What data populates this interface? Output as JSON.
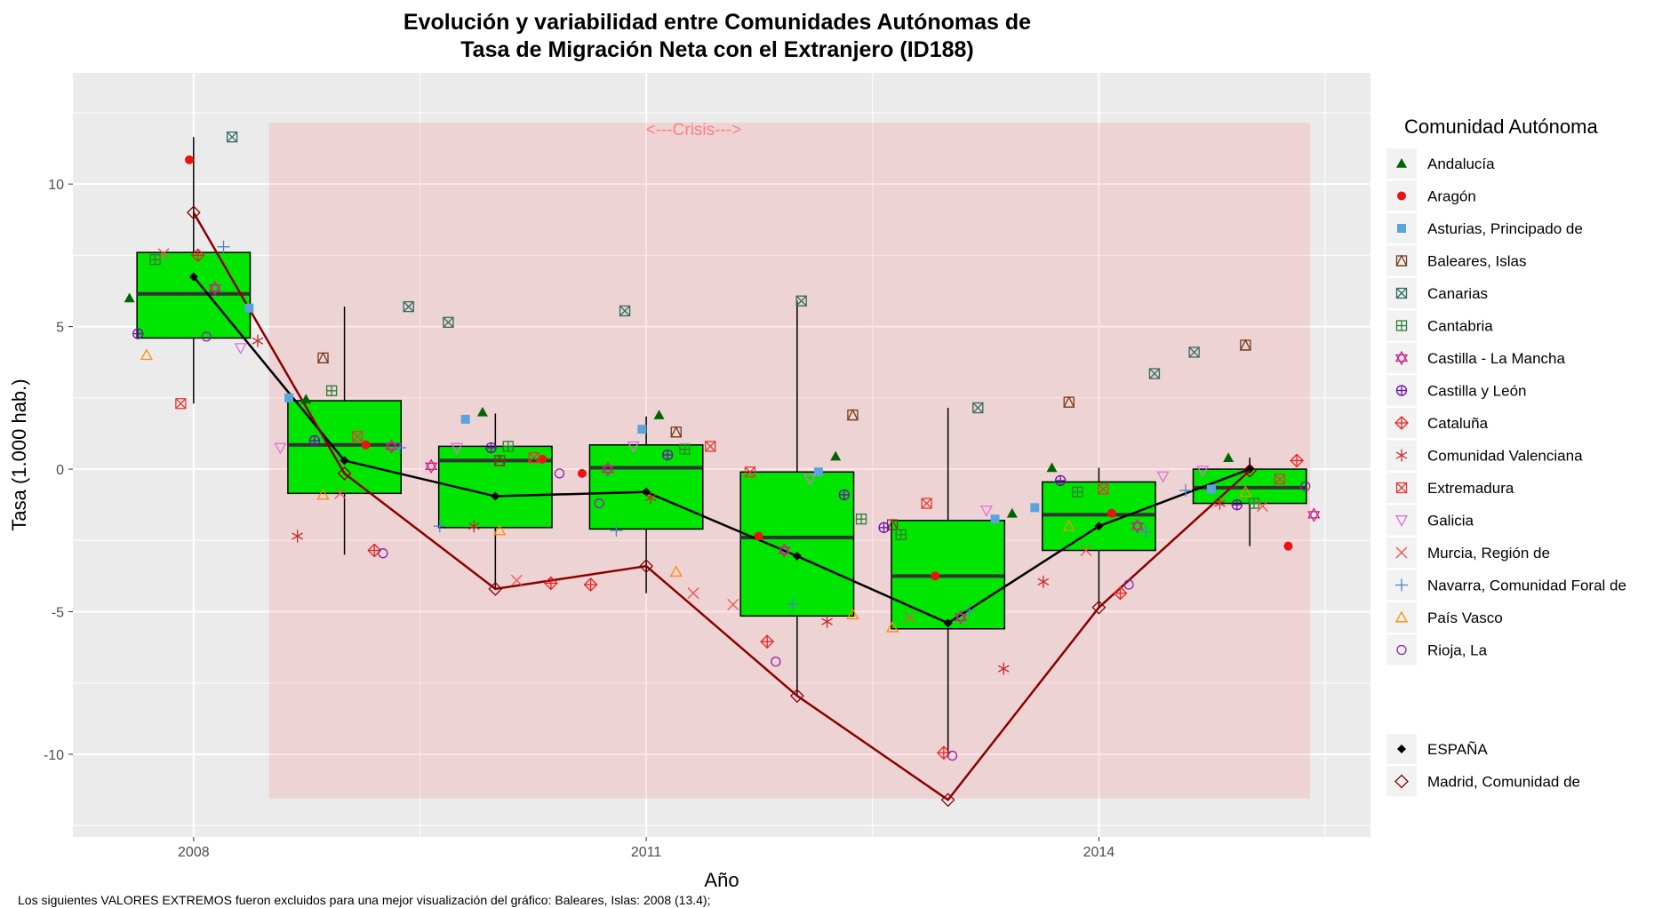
{
  "chart_data": {
    "type": "boxplot",
    "title_line1": "Evolución y variabilidad entre Comunidades Autónomas de",
    "title_line2": "Tasa de Migración Neta con el Extranjero (ID188)",
    "xlabel": "Año",
    "ylabel": "Tasa (1.000 hab.)",
    "ylim": [
      -12.9,
      13.9
    ],
    "xlim": [
      2007.2,
      2015.8
    ],
    "x_ticks": [
      2008,
      2011,
      2014
    ],
    "y_ticks": [
      10,
      5,
      0,
      -5,
      -10
    ],
    "y_tick_labels": [
      "10",
      "5",
      "0",
      "-5",
      "-10"
    ],
    "crisis_annotation": "<---Crisis--->",
    "crisis_range": [
      2008.5,
      2015.4
    ],
    "crisis_y": [
      -11.55,
      12.15
    ],
    "legend_title": "Comunidad Autónoma",
    "footnote": "Los siguientes VALORES EXTREMOS fueron excluidos para una mejor visualización del gráfico: Baleares, Islas: 2008 (13.4);",
    "years": [
      2008,
      2009,
      2010,
      2011,
      2012,
      2013,
      2014,
      2015
    ],
    "boxes": [
      {
        "year": 2008,
        "q1": 4.6,
        "median": 6.15,
        "q3": 7.6,
        "whisker_low": 2.3,
        "whisker_high": 11.65
      },
      {
        "year": 2009,
        "q1": -0.85,
        "median": 0.85,
        "q3": 2.4,
        "whisker_low": -3.0,
        "whisker_high": 5.7
      },
      {
        "year": 2010,
        "q1": -2.05,
        "median": 0.3,
        "q3": 0.8,
        "whisker_low": -4.2,
        "whisker_high": 1.95
      },
      {
        "year": 2011,
        "q1": -2.1,
        "median": 0.05,
        "q3": 0.85,
        "whisker_low": -4.35,
        "whisker_high": 1.85
      },
      {
        "year": 2012,
        "q1": -5.15,
        "median": -2.4,
        "q3": -0.1,
        "whisker_low": -7.9,
        "whisker_high": 5.9
      },
      {
        "year": 2013,
        "q1": -5.6,
        "median": -3.75,
        "q3": -1.8,
        "whisker_low": -10.1,
        "whisker_high": 2.15
      },
      {
        "year": 2014,
        "q1": -2.85,
        "median": -1.6,
        "q3": -0.45,
        "whisker_low": -4.9,
        "whisker_high": 0.05
      },
      {
        "year": 2015,
        "q1": -1.2,
        "median": -0.65,
        "q3": 0.0,
        "whisker_low": -2.7,
        "whisker_high": 0.4
      }
    ],
    "lines": [
      {
        "name": "ESPAÑA",
        "color": "#000000",
        "marker": "diamond-filled",
        "values": [
          6.75,
          0.3,
          -0.95,
          -0.8,
          -3.05,
          -5.4,
          -2.0,
          0.0
        ]
      },
      {
        "name": "Madrid, Comunidad de",
        "color": "#8b0000",
        "marker": "diamond-open",
        "values": [
          9.0,
          -0.15,
          -4.2,
          -3.4,
          -7.95,
          -11.6,
          -4.85,
          -0.05
        ]
      }
    ],
    "series": [
      {
        "name": "Andalucía",
        "color": "#006400",
        "shape": "triangle-filled",
        "points": [
          [
            2008,
            6.0
          ],
          [
            2009,
            2.45
          ],
          [
            2010,
            2.0
          ],
          [
            2011,
            1.9
          ],
          [
            2012,
            0.45
          ],
          [
            2013,
            -1.55
          ],
          [
            2014,
            0.05
          ],
          [
            2015,
            0.4
          ]
        ]
      },
      {
        "name": "Aragón",
        "color": "#ee1111",
        "shape": "circle-filled",
        "points": [
          [
            2008,
            10.85
          ],
          [
            2009,
            0.85
          ],
          [
            2010,
            0.35
          ],
          [
            2011,
            -0.15
          ],
          [
            2012,
            -2.35
          ],
          [
            2013,
            -3.75
          ],
          [
            2014,
            -1.55
          ],
          [
            2015,
            -2.7
          ]
        ]
      },
      {
        "name": "Asturias, Principado de",
        "color": "#5ba3dd",
        "shape": "square-filled",
        "points": [
          [
            2008,
            5.65
          ],
          [
            2009,
            2.5
          ],
          [
            2010,
            1.75
          ],
          [
            2011,
            1.4
          ],
          [
            2012,
            -0.1
          ],
          [
            2013,
            -1.75
          ],
          [
            2014,
            -1.35
          ],
          [
            2015,
            -0.7
          ]
        ]
      },
      {
        "name": "Baleares, Islas",
        "color": "#7a3b1a",
        "shape": "square-triangle",
        "points": [
          [
            2009,
            3.9
          ],
          [
            2010,
            0.3
          ],
          [
            2011,
            1.3
          ],
          [
            2012,
            1.9
          ],
          [
            2013,
            -1.95
          ],
          [
            2014,
            2.35
          ],
          [
            2015,
            4.35
          ]
        ]
      },
      {
        "name": "Canarias",
        "color": "#2e6b5e",
        "shape": "square-cross",
        "points": [
          [
            2008,
            11.65
          ],
          [
            2009,
            5.7
          ],
          [
            2010,
            5.15
          ],
          [
            2011,
            5.55
          ],
          [
            2012,
            5.9
          ],
          [
            2013,
            2.15
          ],
          [
            2014,
            3.35
          ],
          [
            2015,
            4.1
          ]
        ]
      },
      {
        "name": "Cantabria",
        "color": "#2e7d32",
        "shape": "square-plus",
        "points": [
          [
            2008,
            7.35
          ],
          [
            2009,
            2.75
          ],
          [
            2010,
            0.8
          ],
          [
            2011,
            0.7
          ],
          [
            2012,
            -1.75
          ],
          [
            2013,
            -2.3
          ],
          [
            2014,
            -0.8
          ],
          [
            2015,
            -1.2
          ]
        ]
      },
      {
        "name": "Castilla - La Mancha",
        "color": "#cc1f8a",
        "shape": "star-of-david",
        "points": [
          [
            2008,
            6.35
          ],
          [
            2009,
            0.8
          ],
          [
            2010,
            0.1
          ],
          [
            2011,
            0.0
          ],
          [
            2012,
            -2.85
          ],
          [
            2013,
            -5.2
          ],
          [
            2014,
            -2.0
          ],
          [
            2015,
            -1.6
          ]
        ]
      },
      {
        "name": "Castilla y León",
        "color": "#6a0dad",
        "shape": "circle-plus",
        "points": [
          [
            2008,
            4.75
          ],
          [
            2009,
            1.0
          ],
          [
            2010,
            0.75
          ],
          [
            2011,
            0.5
          ],
          [
            2012,
            -0.9
          ],
          [
            2013,
            -2.05
          ],
          [
            2014,
            -0.4
          ],
          [
            2015,
            -1.25
          ]
        ]
      },
      {
        "name": "Cataluña",
        "color": "#ee2222",
        "shape": "diamond-plus",
        "points": [
          [
            2008,
            7.5
          ],
          [
            2009,
            -2.85
          ],
          [
            2010,
            -4.0
          ],
          [
            2011,
            -4.05
          ],
          [
            2012,
            -6.05
          ],
          [
            2013,
            -9.95
          ],
          [
            2014,
            -4.35
          ],
          [
            2015,
            0.3
          ]
        ]
      },
      {
        "name": "Comunidad Valenciana",
        "color": "#c62828",
        "shape": "asterisk",
        "points": [
          [
            2008,
            4.5
          ],
          [
            2009,
            -2.35
          ],
          [
            2010,
            -2.0
          ],
          [
            2011,
            -1.0
          ],
          [
            2012,
            -5.35
          ],
          [
            2013,
            -7.0
          ],
          [
            2014,
            -3.95
          ],
          [
            2015,
            -1.2
          ]
        ]
      },
      {
        "name": "Extremadura",
        "color": "#e53935",
        "shape": "square-x",
        "points": [
          [
            2008,
            2.3
          ],
          [
            2009,
            1.15
          ],
          [
            2010,
            0.4
          ],
          [
            2011,
            0.8
          ],
          [
            2012,
            -0.1
          ],
          [
            2013,
            -1.2
          ],
          [
            2014,
            -0.7
          ],
          [
            2015,
            -0.35
          ]
        ]
      },
      {
        "name": "Galicia",
        "color": "#e06ee0",
        "shape": "triangle-down-open",
        "points": [
          [
            2008,
            4.25
          ],
          [
            2009,
            0.75
          ],
          [
            2010,
            0.75
          ],
          [
            2011,
            0.8
          ],
          [
            2012,
            -0.35
          ],
          [
            2013,
            -1.45
          ],
          [
            2014,
            -0.25
          ],
          [
            2015,
            -0.05
          ]
        ]
      },
      {
        "name": "Murcia, Región de",
        "color": "#ef5350",
        "shape": "x",
        "points": [
          [
            2008,
            7.55
          ],
          [
            2009,
            -0.85
          ],
          [
            2010,
            -3.9
          ],
          [
            2011,
            -4.35
          ],
          [
            2012,
            -4.75
          ],
          [
            2013,
            -5.2
          ],
          [
            2014,
            -2.85
          ],
          [
            2015,
            -1.3
          ]
        ]
      },
      {
        "name": "Navarra, Comunidad Foral de",
        "color": "#4f7fcf",
        "shape": "plus",
        "points": [
          [
            2008,
            7.8
          ],
          [
            2009,
            0.75
          ],
          [
            2010,
            -2.0
          ],
          [
            2011,
            -2.15
          ],
          [
            2012,
            -4.75
          ],
          [
            2013,
            -4.95
          ],
          [
            2014,
            -2.2
          ],
          [
            2015,
            -0.75
          ]
        ]
      },
      {
        "name": "País Vasco",
        "color": "#ff8c00",
        "shape": "triangle-open",
        "points": [
          [
            2008,
            4.0
          ],
          [
            2009,
            -0.9
          ],
          [
            2010,
            -2.15
          ],
          [
            2011,
            -3.6
          ],
          [
            2012,
            -5.1
          ],
          [
            2013,
            -5.55
          ],
          [
            2014,
            -2.0
          ],
          [
            2015,
            -0.8
          ]
        ]
      },
      {
        "name": "Rioja, La",
        "color": "#8e24aa",
        "shape": "circle-open",
        "points": [
          [
            2008,
            4.65
          ],
          [
            2009,
            -2.95
          ],
          [
            2010,
            -0.15
          ],
          [
            2011,
            -1.2
          ],
          [
            2012,
            -6.75
          ],
          [
            2013,
            -10.05
          ],
          [
            2014,
            -4.05
          ],
          [
            2015,
            -0.6
          ]
        ]
      }
    ]
  }
}
